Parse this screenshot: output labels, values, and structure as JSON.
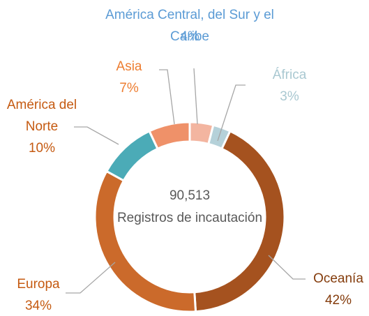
{
  "chart_data": {
    "type": "donut",
    "categories": [
      "América Central, del Sur y el Caribe",
      "África",
      "Oceanía",
      "Europa",
      "América del Norte",
      "Asia"
    ],
    "values": [
      4,
      3,
      42,
      34,
      10,
      7
    ],
    "value_labels": [
      "4%",
      "3%",
      "42%",
      "34%",
      "10%",
      "7%"
    ],
    "colors": [
      "#f3b5a0",
      "#b5d1d9",
      "#a5521f",
      "#cb6a2b",
      "#4babb7",
      "#ef9169"
    ],
    "label_colors": [
      "#5b9bd5",
      "#a9c8d1",
      "#843c0c",
      "#c55a11",
      "#c55a11",
      "#ed7d31"
    ],
    "center_value": "90,513",
    "center_label": "Registros de incautación"
  }
}
